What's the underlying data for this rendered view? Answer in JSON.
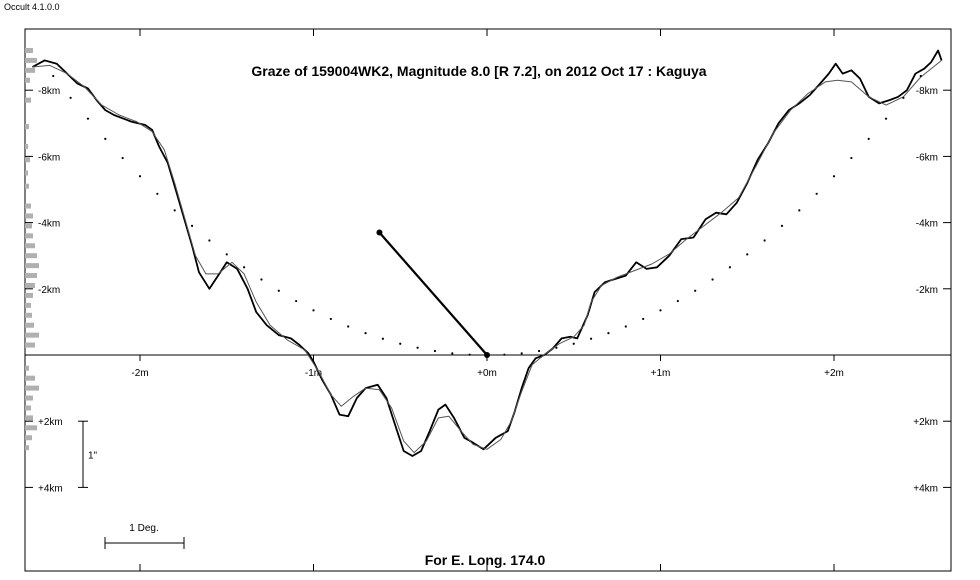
{
  "app_version": "Occult 4.1.0.0",
  "chart_data": {
    "type": "line",
    "title": "Graze of  159004WK2,  Magnitude 8.0 [R 7.2],  on 2012 Oct 17  :  Kaguya",
    "footer": "For E. Long. 174.0",
    "x_range_m": [
      -2.63,
      2.63
    ],
    "y_range_km": [
      -9.3,
      4.1
    ],
    "x_ticks": [
      {
        "value": -2,
        "label": "-2m"
      },
      {
        "value": -1,
        "label": "-1m"
      },
      {
        "value": 0,
        "label": "+0m"
      },
      {
        "value": 1,
        "label": "+1m"
      },
      {
        "value": 2,
        "label": "+2m"
      }
    ],
    "y_ticks": [
      {
        "value": -8,
        "label": "-8km"
      },
      {
        "value": -6,
        "label": "-6km"
      },
      {
        "value": -4,
        "label": "-4km"
      },
      {
        "value": -2,
        "label": "-2km"
      },
      {
        "value": 2,
        "label": "+2km"
      },
      {
        "value": 4,
        "label": "+4km"
      }
    ],
    "scale_bar_vertical": {
      "label": "1\"",
      "from_km": 2,
      "to_km": 4
    },
    "scale_bar_horizontal": {
      "label": "1 Deg."
    },
    "series": [
      {
        "style": "heavy",
        "points": [
          [
            -2.62,
            -8.7
          ],
          [
            -2.55,
            -8.9
          ],
          [
            -2.48,
            -8.8
          ],
          [
            -2.42,
            -8.5
          ],
          [
            -2.36,
            -8.2
          ],
          [
            -2.3,
            -8.05
          ],
          [
            -2.25,
            -7.7
          ],
          [
            -2.2,
            -7.4
          ],
          [
            -2.15,
            -7.25
          ],
          [
            -2.1,
            -7.15
          ],
          [
            -2.05,
            -7.05
          ],
          [
            -1.97,
            -6.95
          ],
          [
            -1.93,
            -6.8
          ],
          [
            -1.89,
            -6.3
          ],
          [
            -1.84,
            -5.8
          ],
          [
            -1.8,
            -5.1
          ],
          [
            -1.75,
            -4.2
          ],
          [
            -1.7,
            -3.3
          ],
          [
            -1.66,
            -2.5
          ],
          [
            -1.6,
            -2.0
          ],
          [
            -1.55,
            -2.4
          ],
          [
            -1.5,
            -2.8
          ],
          [
            -1.44,
            -2.6
          ],
          [
            -1.38,
            -2.0
          ],
          [
            -1.33,
            -1.3
          ],
          [
            -1.27,
            -0.9
          ],
          [
            -1.2,
            -0.6
          ],
          [
            -1.13,
            -0.5
          ],
          [
            -1.08,
            -0.3
          ],
          [
            -1.03,
            -0.05
          ],
          [
            -1.0,
            0.2
          ],
          [
            -0.95,
            0.75
          ],
          [
            -0.9,
            1.2
          ],
          [
            -0.85,
            1.8
          ],
          [
            -0.8,
            1.85
          ],
          [
            -0.75,
            1.3
          ],
          [
            -0.7,
            1.0
          ],
          [
            -0.63,
            0.9
          ],
          [
            -0.58,
            1.3
          ],
          [
            -0.53,
            2.1
          ],
          [
            -0.48,
            2.9
          ],
          [
            -0.43,
            3.05
          ],
          [
            -0.38,
            2.9
          ],
          [
            -0.33,
            2.3
          ],
          [
            -0.28,
            1.65
          ],
          [
            -0.24,
            1.5
          ],
          [
            -0.19,
            1.9
          ],
          [
            -0.13,
            2.5
          ],
          [
            -0.08,
            2.65
          ],
          [
            -0.02,
            2.85
          ],
          [
            0.05,
            2.5
          ],
          [
            0.12,
            2.3
          ],
          [
            0.16,
            1.7
          ],
          [
            0.2,
            1.0
          ],
          [
            0.24,
            0.4
          ],
          [
            0.28,
            0.1
          ],
          [
            0.33,
            0.0
          ],
          [
            0.38,
            -0.2
          ],
          [
            0.43,
            -0.5
          ],
          [
            0.48,
            -0.55
          ],
          [
            0.52,
            -0.5
          ],
          [
            0.58,
            -1.2
          ],
          [
            0.62,
            -1.9
          ],
          [
            0.68,
            -2.2
          ],
          [
            0.74,
            -2.3
          ],
          [
            0.8,
            -2.4
          ],
          [
            0.86,
            -2.8
          ],
          [
            0.92,
            -2.6
          ],
          [
            0.98,
            -2.65
          ],
          [
            1.05,
            -3.0
          ],
          [
            1.12,
            -3.5
          ],
          [
            1.19,
            -3.55
          ],
          [
            1.26,
            -4.1
          ],
          [
            1.32,
            -4.3
          ],
          [
            1.38,
            -4.25
          ],
          [
            1.44,
            -4.6
          ],
          [
            1.5,
            -5.2
          ],
          [
            1.56,
            -5.9
          ],
          [
            1.62,
            -6.4
          ],
          [
            1.68,
            -7.0
          ],
          [
            1.74,
            -7.4
          ],
          [
            1.8,
            -7.6
          ],
          [
            1.86,
            -7.85
          ],
          [
            1.92,
            -8.2
          ],
          [
            1.97,
            -8.5
          ],
          [
            2.01,
            -8.8
          ],
          [
            2.05,
            -8.5
          ],
          [
            2.1,
            -8.6
          ],
          [
            2.15,
            -8.35
          ],
          [
            2.2,
            -7.8
          ],
          [
            2.26,
            -7.6
          ],
          [
            2.32,
            -7.7
          ],
          [
            2.37,
            -7.8
          ],
          [
            2.42,
            -8.0
          ],
          [
            2.47,
            -8.5
          ],
          [
            2.52,
            -8.65
          ],
          [
            2.56,
            -8.85
          ],
          [
            2.6,
            -9.2
          ],
          [
            2.62,
            -8.9
          ]
        ]
      },
      {
        "style": "thin",
        "points": [
          [
            -2.62,
            -8.7
          ],
          [
            -2.52,
            -8.75
          ],
          [
            -2.42,
            -8.5
          ],
          [
            -2.32,
            -8.1
          ],
          [
            -2.22,
            -7.55
          ],
          [
            -2.12,
            -7.25
          ],
          [
            -2.02,
            -7.05
          ],
          [
            -1.93,
            -6.75
          ],
          [
            -1.86,
            -6.2
          ],
          [
            -1.8,
            -5.2
          ],
          [
            -1.74,
            -4.1
          ],
          [
            -1.68,
            -3.0
          ],
          [
            -1.62,
            -2.45
          ],
          [
            -1.55,
            -2.45
          ],
          [
            -1.47,
            -2.8
          ],
          [
            -1.4,
            -2.45
          ],
          [
            -1.33,
            -1.6
          ],
          [
            -1.25,
            -0.9
          ],
          [
            -1.15,
            -0.45
          ],
          [
            -1.05,
            -0.15
          ],
          [
            -0.97,
            0.5
          ],
          [
            -0.9,
            1.2
          ],
          [
            -0.84,
            1.55
          ],
          [
            -0.77,
            1.25
          ],
          [
            -0.7,
            1.0
          ],
          [
            -0.62,
            1.05
          ],
          [
            -0.55,
            1.6
          ],
          [
            -0.48,
            2.6
          ],
          [
            -0.42,
            2.95
          ],
          [
            -0.35,
            2.6
          ],
          [
            -0.28,
            1.9
          ],
          [
            -0.22,
            1.85
          ],
          [
            -0.15,
            2.3
          ],
          [
            -0.08,
            2.7
          ],
          [
            0.0,
            2.85
          ],
          [
            0.08,
            2.55
          ],
          [
            0.14,
            2.0
          ],
          [
            0.2,
            1.1
          ],
          [
            0.26,
            0.3
          ],
          [
            0.34,
            -0.05
          ],
          [
            0.42,
            -0.35
          ],
          [
            0.5,
            -0.55
          ],
          [
            0.56,
            -0.9
          ],
          [
            0.6,
            -1.6
          ],
          [
            0.66,
            -2.1
          ],
          [
            0.75,
            -2.35
          ],
          [
            0.85,
            -2.55
          ],
          [
            0.95,
            -2.75
          ],
          [
            1.05,
            -3.05
          ],
          [
            1.15,
            -3.5
          ],
          [
            1.25,
            -3.9
          ],
          [
            1.35,
            -4.3
          ],
          [
            1.45,
            -4.75
          ],
          [
            1.55,
            -5.7
          ],
          [
            1.65,
            -6.7
          ],
          [
            1.75,
            -7.4
          ],
          [
            1.85,
            -7.9
          ],
          [
            1.95,
            -8.25
          ],
          [
            2.02,
            -8.3
          ],
          [
            2.1,
            -8.25
          ],
          [
            2.2,
            -7.8
          ],
          [
            2.3,
            -7.55
          ],
          [
            2.4,
            -7.8
          ],
          [
            2.5,
            -8.4
          ],
          [
            2.62,
            -8.9
          ]
        ]
      },
      {
        "style": "dotted",
        "points": [
          [
            -2.5,
            -8.43
          ],
          [
            -2.4,
            -7.77
          ],
          [
            -2.3,
            -7.14
          ],
          [
            -2.2,
            -6.53
          ],
          [
            -2.1,
            -5.95
          ],
          [
            -2.0,
            -5.4
          ],
          [
            -1.9,
            -4.87
          ],
          [
            -1.8,
            -4.37
          ],
          [
            -1.7,
            -3.9
          ],
          [
            -1.6,
            -3.46
          ],
          [
            -1.5,
            -3.04
          ],
          [
            -1.4,
            -2.65
          ],
          [
            -1.3,
            -2.28
          ],
          [
            -1.2,
            -1.94
          ],
          [
            -1.1,
            -1.63
          ],
          [
            -1.0,
            -1.35
          ],
          [
            -0.9,
            -1.09
          ],
          [
            -0.8,
            -0.86
          ],
          [
            -0.7,
            -0.66
          ],
          [
            -0.6,
            -0.49
          ],
          [
            -0.5,
            -0.34
          ],
          [
            -0.4,
            -0.22
          ],
          [
            -0.3,
            -0.12
          ],
          [
            -0.2,
            -0.05
          ],
          [
            -0.1,
            -0.01
          ],
          [
            0.0,
            0.0
          ],
          [
            0.1,
            -0.01
          ],
          [
            0.2,
            -0.05
          ],
          [
            0.3,
            -0.12
          ],
          [
            0.4,
            -0.22
          ],
          [
            0.5,
            -0.34
          ],
          [
            0.6,
            -0.49
          ],
          [
            0.7,
            -0.66
          ],
          [
            0.8,
            -0.86
          ],
          [
            0.9,
            -1.09
          ],
          [
            1.0,
            -1.35
          ],
          [
            1.1,
            -1.63
          ],
          [
            1.2,
            -1.94
          ],
          [
            1.3,
            -2.28
          ],
          [
            1.4,
            -2.65
          ],
          [
            1.5,
            -3.04
          ],
          [
            1.6,
            -3.46
          ],
          [
            1.7,
            -3.9
          ],
          [
            1.8,
            -4.37
          ],
          [
            1.9,
            -4.87
          ],
          [
            2.0,
            -5.4
          ],
          [
            2.1,
            -5.95
          ],
          [
            2.2,
            -6.53
          ],
          [
            2.3,
            -7.14
          ],
          [
            2.4,
            -7.77
          ],
          [
            2.5,
            -8.43
          ]
        ]
      }
    ],
    "direction_vector": {
      "from": [
        0,
        0
      ],
      "to": [
        -0.62,
        -3.7
      ]
    },
    "side_histogram_km": [
      {
        "y": -9.2,
        "len": 8
      },
      {
        "y": -8.9,
        "len": 12
      },
      {
        "y": -8.6,
        "len": 10
      },
      {
        "y": -8.3,
        "len": 5
      },
      {
        "y": -7.7,
        "len": 6
      },
      {
        "y": -6.9,
        "len": 4
      },
      {
        "y": -6.3,
        "len": 3
      },
      {
        "y": -5.9,
        "len": 5
      },
      {
        "y": -5.5,
        "len": 3
      },
      {
        "y": -5.1,
        "len": 4
      },
      {
        "y": -4.5,
        "len": 6
      },
      {
        "y": -4.2,
        "len": 8
      },
      {
        "y": -3.9,
        "len": 7
      },
      {
        "y": -3.6,
        "len": 8
      },
      {
        "y": -3.3,
        "len": 10
      },
      {
        "y": -3.0,
        "len": 12
      },
      {
        "y": -2.7,
        "len": 14
      },
      {
        "y": -2.4,
        "len": 12
      },
      {
        "y": -2.1,
        "len": 10
      },
      {
        "y": -1.8,
        "len": 8
      },
      {
        "y": -1.5,
        "len": 6
      },
      {
        "y": -1.2,
        "len": 7
      },
      {
        "y": -0.9,
        "len": 9
      },
      {
        "y": -0.6,
        "len": 14
      },
      {
        "y": -0.3,
        "len": 10
      },
      {
        "y": 0.4,
        "len": 4
      },
      {
        "y": 0.7,
        "len": 10
      },
      {
        "y": 1.0,
        "len": 14
      },
      {
        "y": 1.3,
        "len": 8
      },
      {
        "y": 1.6,
        "len": 6
      },
      {
        "y": 1.9,
        "len": 8
      },
      {
        "y": 2.2,
        "len": 12
      },
      {
        "y": 2.5,
        "len": 7
      },
      {
        "y": 2.8,
        "len": 4
      }
    ]
  }
}
